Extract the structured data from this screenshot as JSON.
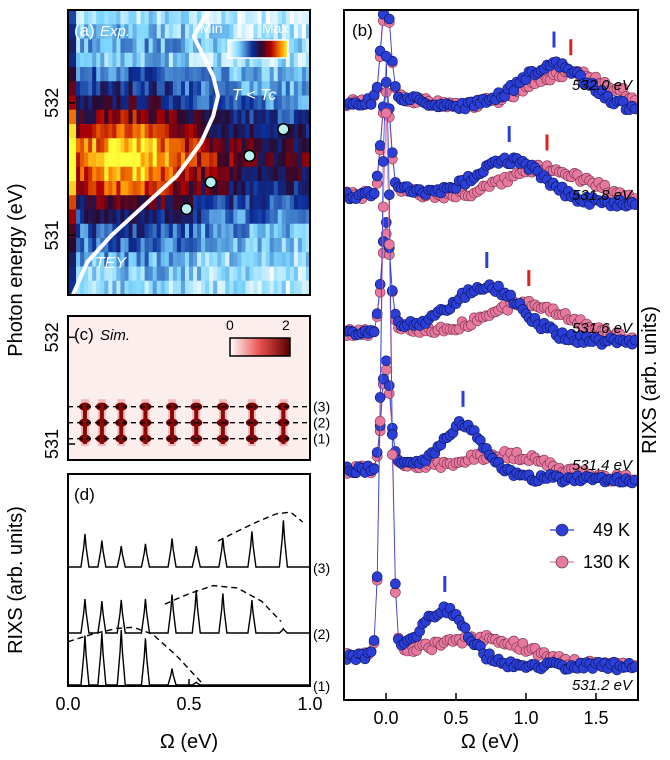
{
  "chart_data": [
    {
      "panel": "(a)",
      "type": "heatmap",
      "annotation": "Exp.",
      "colorbar": {
        "min_label": "Min",
        "max_label": "Max"
      },
      "condition_label": "T < Tc",
      "curve_label": "TEY",
      "ylabel": "Photon energy (eV)",
      "ylim": [
        530.55,
        532.7
      ],
      "xlim": [
        0.0,
        1.0
      ],
      "y_ticks": [
        "532",
        "531"
      ],
      "row_energies": [
        532.5,
        532.4,
        532.3,
        532.2,
        532.1,
        532.0,
        531.9,
        531.8,
        531.7,
        531.6,
        531.5,
        531.4,
        531.3,
        531.2,
        531.1,
        531.0,
        530.9,
        530.8,
        530.7,
        530.6
      ],
      "row_intensity": [
        0.12,
        0.18,
        0.22,
        0.18,
        0.3,
        0.38,
        0.45,
        0.6,
        0.72,
        0.82,
        0.88,
        0.8,
        0.7,
        0.55,
        0.45,
        0.35,
        0.3,
        0.22,
        0.18,
        0.15
      ],
      "tey_curve": {
        "x": [
          0.02,
          0.08,
          0.18,
          0.3,
          0.45,
          0.55,
          0.6,
          0.62,
          0.6,
          0.56,
          0.52,
          0.55,
          0.58
        ],
        "y": [
          530.55,
          530.8,
          531.0,
          531.2,
          531.45,
          531.7,
          531.9,
          532.05,
          532.2,
          532.35,
          532.5,
          532.6,
          532.7
        ]
      },
      "markers": {
        "x": [
          0.49,
          0.59,
          0.75,
          0.89
        ],
        "y": [
          531.2,
          531.4,
          531.6,
          531.8
        ]
      }
    },
    {
      "panel": "(c)",
      "type": "heatmap",
      "annotation": "Sim.",
      "colorbar": {
        "min_label": "0",
        "max_label": "2"
      },
      "ylim": [
        530.85,
        532.2
      ],
      "xlim": [
        0.0,
        1.0
      ],
      "y_ticks": [
        "532",
        "531"
      ],
      "peak_x": [
        0.07,
        0.14,
        0.22,
        0.32,
        0.43,
        0.53,
        0.64,
        0.76,
        0.89
      ],
      "row_levels": [
        531.05,
        531.2,
        531.35
      ],
      "dashed_levels": [
        531.05,
        531.2,
        531.35
      ],
      "dashed_labels": [
        "(1)",
        "(2)",
        "(3)"
      ]
    },
    {
      "panel": "(d)",
      "type": "line",
      "ylabel": "RIXS (arb. units)",
      "xlabel": "Ω (eV)",
      "xlim": [
        0.0,
        1.0
      ],
      "x_ticks": [
        "0.0",
        "0.5",
        "1.0"
      ],
      "peak_x": [
        0.07,
        0.14,
        0.22,
        0.32,
        0.43,
        0.53,
        0.64,
        0.76,
        0.89
      ],
      "series": [
        {
          "name": "(3)",
          "peak_heights": [
            0.6,
            0.48,
            0.38,
            0.42,
            0.52,
            0.38,
            0.52,
            0.65,
            0.85
          ],
          "envelope": {
            "x": [
              0.62,
              0.7,
              0.78,
              0.86,
              0.92,
              0.97
            ],
            "y": [
              0.45,
              0.62,
              0.78,
              0.92,
              0.95,
              0.78
            ]
          }
        },
        {
          "name": "(2)",
          "peak_heights": [
            0.62,
            0.58,
            0.6,
            0.62,
            0.7,
            0.78,
            0.72,
            0.6,
            0.08
          ],
          "envelope": {
            "x": [
              0.4,
              0.5,
              0.6,
              0.7,
              0.8,
              0.88
            ],
            "y": [
              0.5,
              0.68,
              0.82,
              0.78,
              0.55,
              0.2
            ]
          }
        },
        {
          "name": "(1)",
          "peak_heights": [
            0.9,
            0.95,
            1.0,
            0.85,
            0.3,
            0.05,
            0.0,
            0.0,
            0.0
          ],
          "envelope": {
            "x": [
              0.0,
              0.1,
              0.2,
              0.27,
              0.35,
              0.45,
              0.55
            ],
            "y": [
              0.75,
              0.88,
              0.98,
              1.0,
              0.88,
              0.5,
              0.05
            ]
          }
        }
      ]
    },
    {
      "panel": "(b)",
      "type": "scatter",
      "xlabel": "Ω (eV)",
      "ylabel": "RIXS (arb. units)",
      "xlim": [
        -0.3,
        1.8
      ],
      "x_ticks": [
        "0.0",
        "0.5",
        "1.0",
        "1.5"
      ],
      "legend": {
        "placement": "lower-right",
        "entries": [
          "49 K",
          "130 K"
        ]
      },
      "colors": {
        "49K": "#2b3fd6",
        "130K": "#e7799f"
      },
      "spectra": [
        {
          "energy": "532.0 eV",
          "peak_49K": 1.2,
          "peak_130K": 1.32,
          "bump_49K": 0.9,
          "bump_130K": 0.75
        },
        {
          "energy": "531.8 eV",
          "peak_49K": 0.88,
          "peak_130K": 1.15,
          "bump_49K": 0.85,
          "bump_130K": 0.7
        },
        {
          "energy": "531.6 eV",
          "peak_49K": 0.72,
          "peak_130K": 1.02,
          "bump_49K": 1.05,
          "bump_130K": 0.72
        },
        {
          "energy": "531.4 eV",
          "peak_49K": 0.55,
          "peak_130K": null,
          "bump_49K": 1.0,
          "bump_130K": 0.45
        },
        {
          "energy": "531.2 eV",
          "peak_49K": 0.42,
          "peak_130K": null,
          "bump_49K": 1.0,
          "bump_130K": 0.5
        }
      ]
    }
  ]
}
